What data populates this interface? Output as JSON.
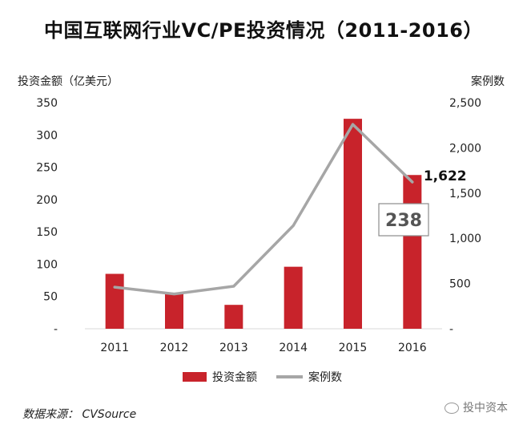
{
  "title": "中国互联网行业VC/PE投资情况（2011-2016）",
  "source": "数据来源： CVSource",
  "watermark": "投中资本",
  "chart_data": {
    "type": "bar",
    "categories": [
      "2011",
      "2012",
      "2013",
      "2014",
      "2015",
      "2016"
    ],
    "series": [
      {
        "name": "投资金额",
        "type": "bar",
        "axis": "left",
        "color": "#c8232b",
        "values": [
          85,
          55,
          37,
          96,
          325,
          238
        ]
      },
      {
        "name": "案例数",
        "type": "line",
        "axis": "right",
        "color": "#a6a6a6",
        "values": [
          460,
          385,
          470,
          1140,
          2260,
          1622
        ]
      }
    ],
    "y_left": {
      "label": "投资金额（亿美元）",
      "ylim": [
        0,
        350
      ],
      "ticks": [
        "-",
        "50",
        "100",
        "150",
        "200",
        "250",
        "300",
        "350"
      ]
    },
    "y_right": {
      "label": "案例数",
      "ylim": [
        0,
        2500
      ],
      "ticks": [
        "-",
        "500",
        "1,000",
        "1,500",
        "2,000",
        "2,500"
      ]
    },
    "annotations": [
      {
        "text": "1,622",
        "series": "案例数",
        "category": "2016"
      },
      {
        "text": "238",
        "series": "投资金额",
        "category": "2016",
        "boxed": true
      }
    ],
    "legend": {
      "position": "bottom",
      "items": [
        "投资金额",
        "案例数"
      ]
    },
    "grid": false
  }
}
